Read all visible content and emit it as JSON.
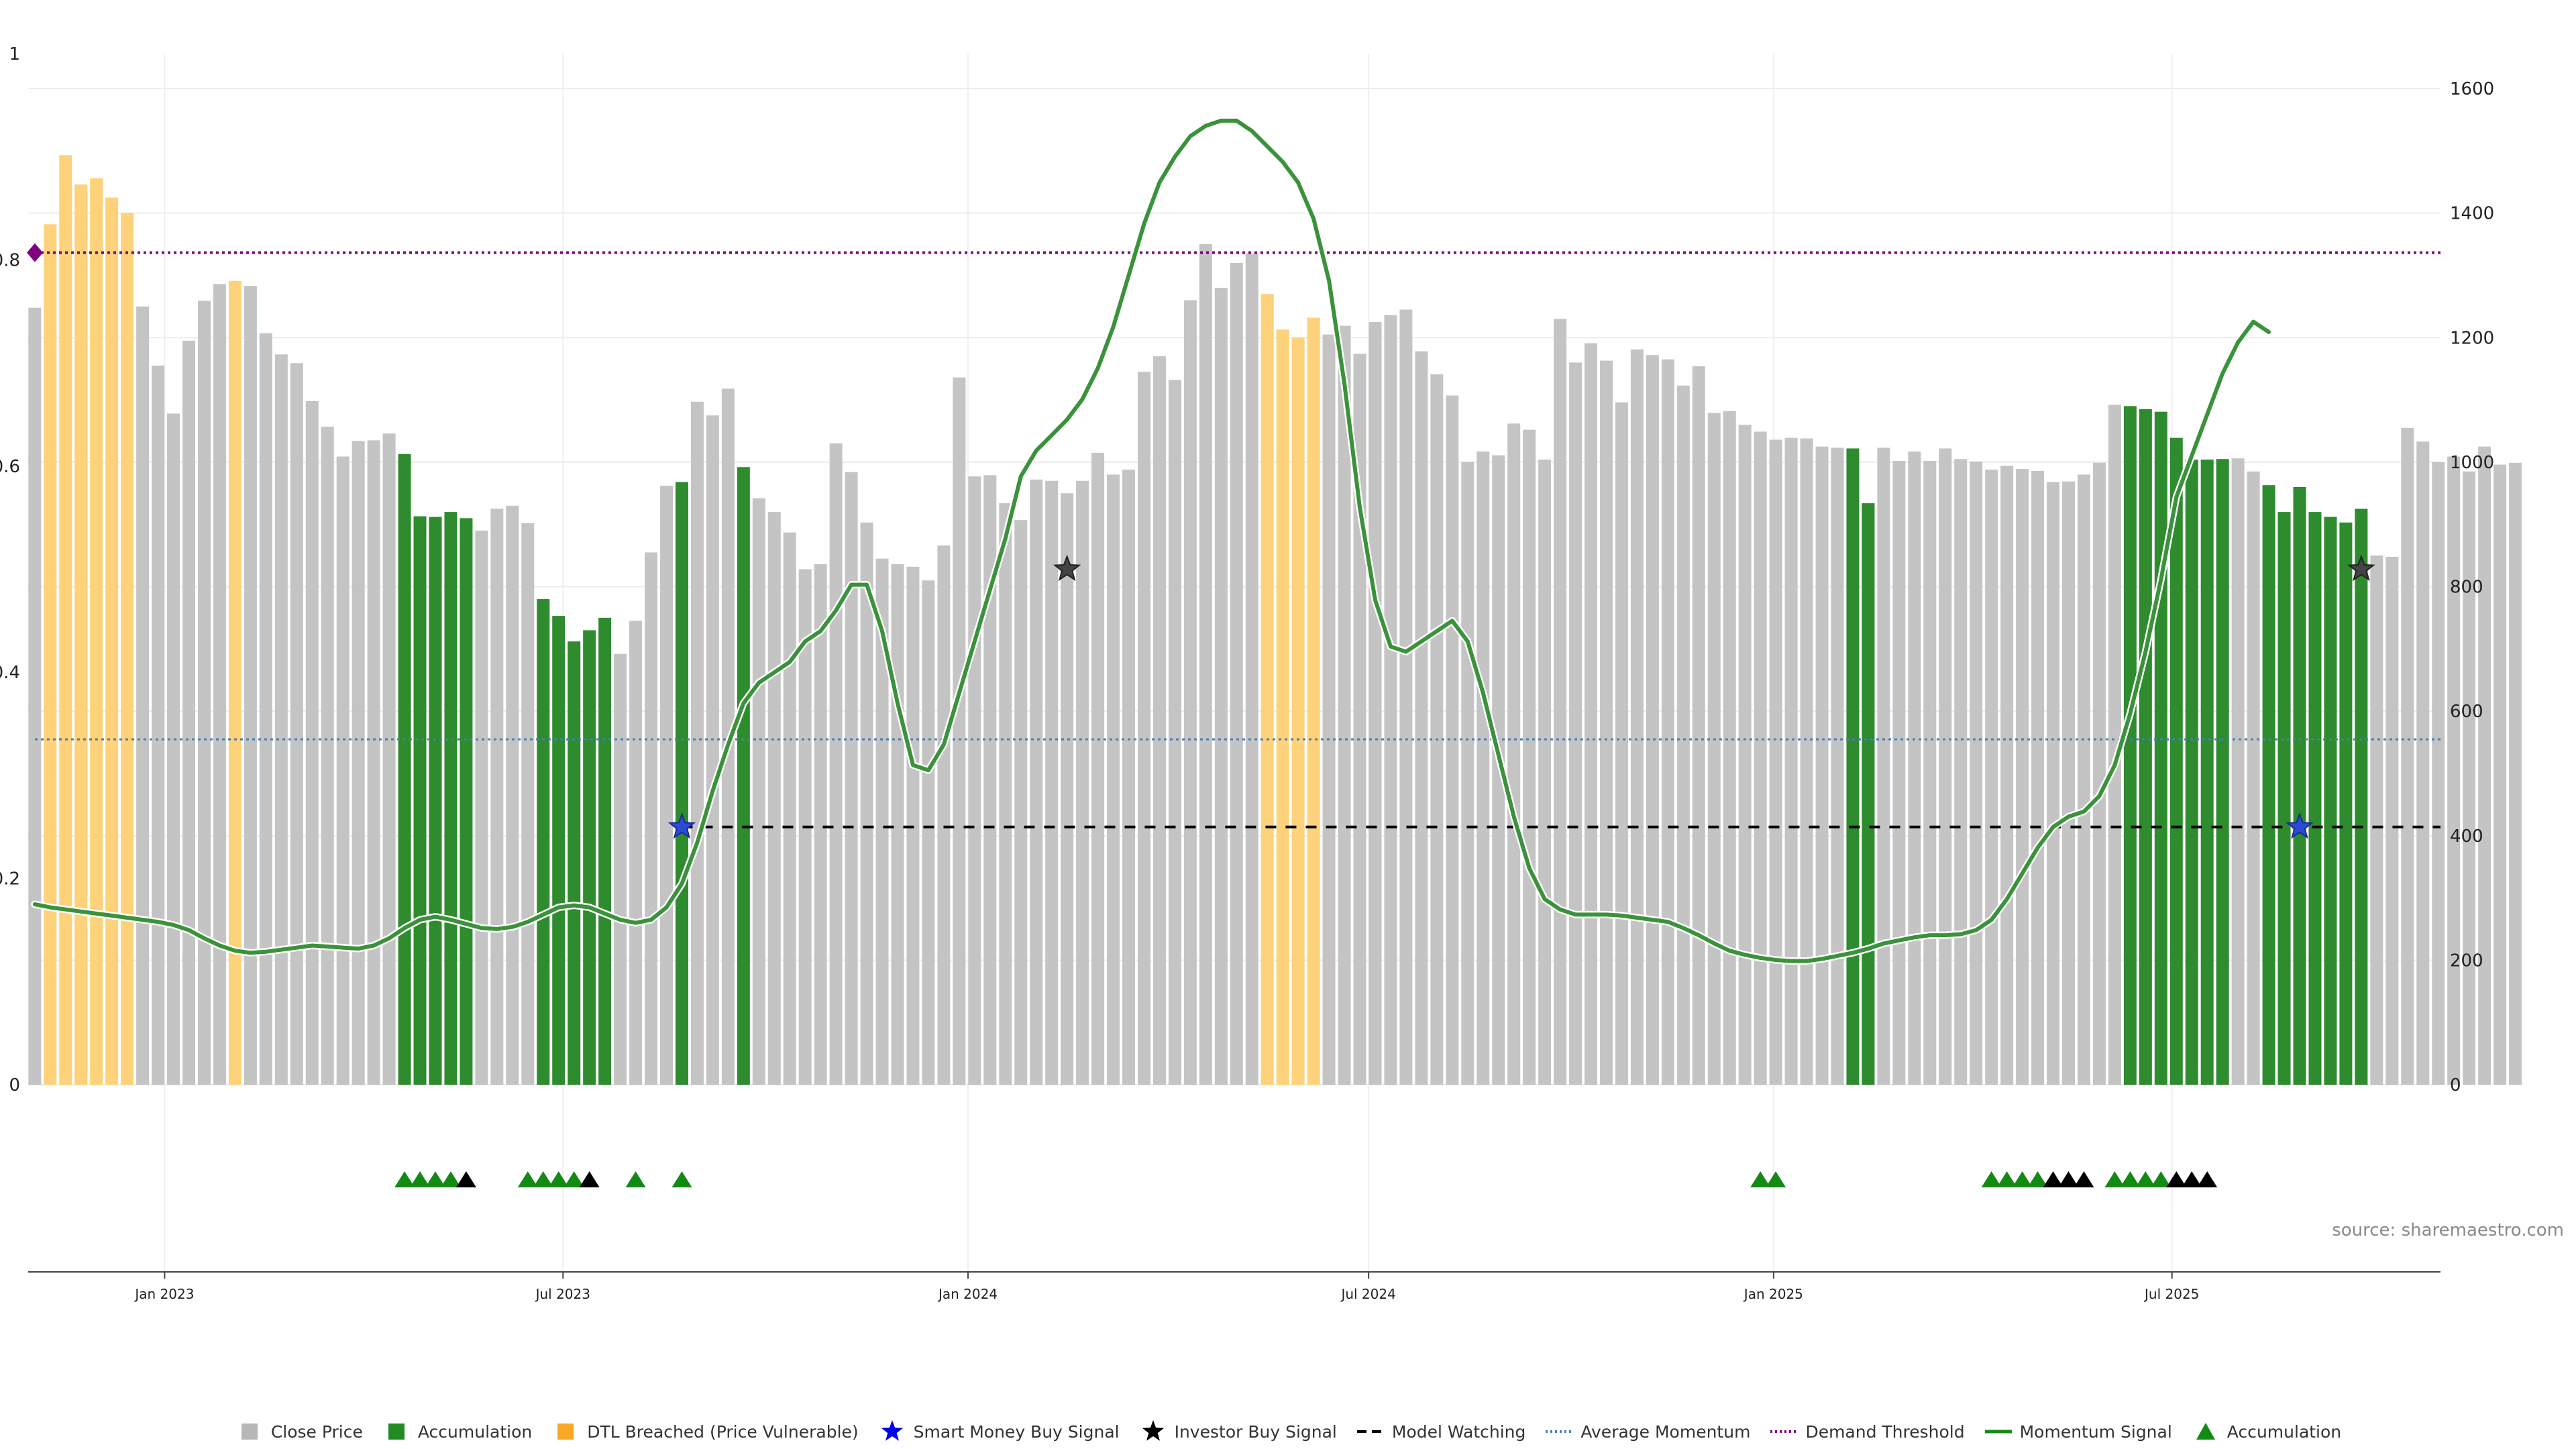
{
  "chart_data": {
    "type": "bar",
    "left_axis": {
      "ticks": [
        "0",
        "0.2",
        "0.4",
        "0.6",
        "0.8",
        "1"
      ],
      "range": [
        0,
        1
      ]
    },
    "right_axis": {
      "ticks": [
        "0",
        "200",
        "400",
        "600",
        "800",
        "1000",
        "1200",
        "1400",
        "1600"
      ],
      "range": [
        0,
        1600
      ]
    },
    "x_axis": {
      "labels": [
        "Jan 2023",
        "Jul 2023",
        "Jan 2024",
        "Jul 2024",
        "Jan 2025",
        "Jul 2025"
      ],
      "label_dates": [
        "2023-01-01",
        "2023-07-01",
        "2024-01-01",
        "2024-07-01",
        "2025-01-01",
        "2025-07-01"
      ],
      "start_date": "2022-10-31",
      "end_date": "2025-10-31"
    },
    "weeks_start": "2022-11-03",
    "bar_categories": [
      "gray",
      "orange",
      "orange",
      "orange",
      "orange",
      "orange",
      "orange",
      "gray",
      "gray",
      "gray",
      "gray",
      "gray",
      "gray",
      "orange",
      "gray",
      "gray",
      "gray",
      "gray",
      "gray",
      "gray",
      "gray",
      "gray",
      "gray",
      "gray",
      "green",
      "green",
      "green",
      "green",
      "green",
      "gray",
      "gray",
      "gray",
      "gray",
      "green",
      "green",
      "green",
      "green",
      "green",
      "gray",
      "gray",
      "gray",
      "gray",
      "green",
      "gray",
      "gray",
      "gray",
      "green",
      "gray",
      "gray",
      "gray",
      "gray",
      "gray",
      "gray",
      "gray",
      "gray",
      "gray",
      "gray",
      "gray",
      "gray",
      "gray",
      "gray",
      "gray",
      "gray",
      "gray",
      "gray",
      "gray",
      "gray",
      "gray",
      "gray",
      "gray",
      "gray",
      "gray",
      "gray",
      "gray",
      "gray",
      "gray",
      "gray",
      "gray",
      "gray",
      "gray",
      "orange",
      "orange",
      "orange",
      "orange",
      "gray",
      "gray",
      "gray",
      "gray",
      "gray",
      "gray",
      "gray",
      "gray",
      "gray",
      "gray",
      "gray",
      "gray",
      "gray",
      "gray",
      "gray",
      "gray",
      "gray",
      "gray",
      "gray",
      "gray",
      "gray",
      "gray",
      "gray",
      "gray",
      "gray",
      "gray",
      "gray",
      "gray",
      "gray",
      "gray",
      "gray",
      "gray",
      "gray",
      "gray",
      "green",
      "green",
      "gray",
      "gray",
      "gray",
      "gray",
      "gray",
      "gray",
      "gray",
      "gray",
      "gray",
      "gray",
      "gray",
      "gray",
      "gray",
      "gray",
      "gray",
      "gray",
      "green",
      "green",
      "green",
      "green",
      "green",
      "green",
      "green",
      "gray",
      "gray",
      "green",
      "green",
      "green",
      "green",
      "green",
      "green",
      "green",
      "gray",
      "gray",
      "gray",
      "gray",
      "gray",
      "gray",
      "gray",
      "gray",
      "gray",
      "gray"
    ],
    "close_price": [
      1248,
      1382,
      1493,
      1446,
      1456,
      1425,
      1400,
      1250,
      1155,
      1078,
      1195,
      1259,
      1286,
      1291,
      1283,
      1207,
      1173,
      1159,
      1098,
      1057,
      1009,
      1034,
      1035,
      1046,
      1013,
      913,
      912,
      920,
      910,
      890,
      925,
      930,
      902,
      780,
      753,
      712,
      730,
      750,
      692,
      745,
      855,
      962,
      968,
      1097,
      1075,
      1118,
      992,
      942,
      920,
      887,
      828,
      836,
      1030,
      984,
      903,
      845,
      836,
      832,
      810,
      866,
      1136,
      977,
      979,
      934,
      907,
      972,
      970,
      950,
      970,
      1015,
      980,
      988,
      1145,
      1170,
      1132,
      1260,
      1350,
      1280,
      1320,
      1335,
      1270,
      1213,
      1200,
      1232,
      1205,
      1219,
      1174,
      1225,
      1236,
      1245,
      1178,
      1141,
      1107,
      1000,
      1017,
      1011,
      1062,
      1052,
      1004,
      1230,
      1160,
      1191,
      1163,
      1096,
      1181,
      1172,
      1165,
      1123,
      1154,
      1079,
      1082,
      1060,
      1049,
      1036,
      1039,
      1038,
      1025,
      1023,
      1022,
      934,
      1023,
      1002,
      1017,
      1002,
      1022,
      1005,
      1001,
      988,
      994,
      989,
      986,
      968,
      969,
      980,
      999,
      1092,
      1090,
      1085,
      1081,
      1039,
      1004,
      1004,
      1005,
      1006,
      985,
      963,
      920,
      960,
      920,
      912,
      903,
      925,
      850,
      848,
      1055,
      1033,
      1000,
      1009,
      985,
      1025,
      996,
      999
    ],
    "momentum_signal": [
      0.175,
      0.172,
      0.17,
      0.168,
      0.166,
      0.164,
      0.162,
      0.16,
      0.158,
      0.155,
      0.15,
      0.142,
      0.135,
      0.13,
      0.128,
      0.129,
      0.131,
      0.133,
      0.135,
      0.134,
      0.133,
      0.132,
      0.135,
      0.142,
      0.152,
      0.16,
      0.163,
      0.16,
      0.156,
      0.152,
      0.151,
      0.153,
      0.158,
      0.165,
      0.172,
      0.174,
      0.172,
      0.166,
      0.16,
      0.157,
      0.16,
      0.172,
      0.195,
      0.235,
      0.285,
      0.33,
      0.37,
      0.39,
      0.4,
      0.41,
      0.43,
      0.44,
      0.46,
      0.485,
      0.485,
      0.44,
      0.37,
      0.31,
      0.305,
      0.33,
      0.38,
      0.43,
      0.48,
      0.53,
      0.59,
      0.615,
      0.63,
      0.645,
      0.665,
      0.695,
      0.735,
      0.785,
      0.835,
      0.875,
      0.9,
      0.92,
      0.93,
      0.935,
      0.935,
      0.925,
      0.91,
      0.895,
      0.875,
      0.84,
      0.78,
      0.68,
      0.56,
      0.47,
      0.425,
      0.42,
      0.43,
      0.44,
      0.45,
      0.43,
      0.38,
      0.32,
      0.26,
      0.21,
      0.18,
      0.17,
      0.165,
      0.165,
      0.165,
      0.164,
      0.162,
      0.16,
      0.158,
      0.152,
      0.145,
      0.137,
      0.13,
      0.126,
      0.123,
      0.121,
      0.12,
      0.12,
      0.122,
      0.125,
      0.128,
      0.132,
      0.137,
      0.14,
      0.143,
      0.145,
      0.145,
      0.146,
      0.15,
      0.16,
      0.18,
      0.205,
      0.23,
      0.25,
      0.26,
      0.265,
      0.28,
      0.31,
      0.36,
      0.42,
      0.49,
      0.57,
      0.61,
      0.65,
      0.69,
      0.72,
      0.74,
      0.73
    ],
    "avg_momentum": 0.335,
    "model_watching": 0.25,
    "demand_threshold": 0.807,
    "smart_money_signals": [
      {
        "date": "2023-08-24",
        "value": 0.25
      },
      {
        "date": "2025-08-28",
        "value": 0.25
      }
    ],
    "investor_signals": [
      {
        "date": "2024-02-15",
        "value": 0.5
      },
      {
        "date": "2025-09-25",
        "value": 0.5
      }
    ],
    "demand_marker": {
      "date": "2022-10-31",
      "value": 0.807
    },
    "accumulation_markers": {
      "green_dates": [
        "2023-04-20",
        "2023-04-27",
        "2023-05-04",
        "2023-05-11",
        "2023-06-15",
        "2023-06-22",
        "2023-06-29",
        "2023-07-06",
        "2023-08-03",
        "2023-08-24",
        "2024-12-26",
        "2025-01-02",
        "2025-04-10",
        "2025-04-17",
        "2025-04-24",
        "2025-05-01",
        "2025-06-05",
        "2025-06-12",
        "2025-06-19",
        "2025-06-26"
      ],
      "black_dates": [
        "2023-05-18",
        "2023-07-13",
        "2025-05-08",
        "2025-05-15",
        "2025-05-22",
        "2025-07-03",
        "2025-07-10",
        "2025-07-17"
      ]
    },
    "legend": [
      {
        "label": "Close Price",
        "icon": "square",
        "color": "#b7b7b7"
      },
      {
        "label": "Accumulation",
        "icon": "square",
        "color": "#228b22"
      },
      {
        "label": "DTL Breached (Price Vulnerable)",
        "icon": "square",
        "color": "#f9a825"
      },
      {
        "label": "Smart Money Buy Signal",
        "icon": "star",
        "color": "#0000ee"
      },
      {
        "label": "Investor Buy Signal",
        "icon": "star",
        "color": "#000000"
      },
      {
        "label": "Model Watching",
        "icon": "dash",
        "color": "#000000"
      },
      {
        "label": "Average Momentum",
        "icon": "dotted",
        "color": "#4a7fb0"
      },
      {
        "label": "Demand Threshold",
        "icon": "dotted",
        "color": "#800080"
      },
      {
        "label": "Momentum Signal",
        "icon": "line",
        "color": "#138a13"
      },
      {
        "label": "Accumulation",
        "icon": "triangle",
        "color": "#138a13"
      }
    ],
    "colors": {
      "gray": "#c4c4c4",
      "green": "#2e8b2e",
      "orange": "#fdd27a",
      "momentum": "#3a923a",
      "momentum_dark": "#138a13",
      "avg_momentum": "#4a7fb0",
      "demand": "#800080",
      "watching": "#000000"
    },
    "source": "source: sharemaestro.com"
  }
}
